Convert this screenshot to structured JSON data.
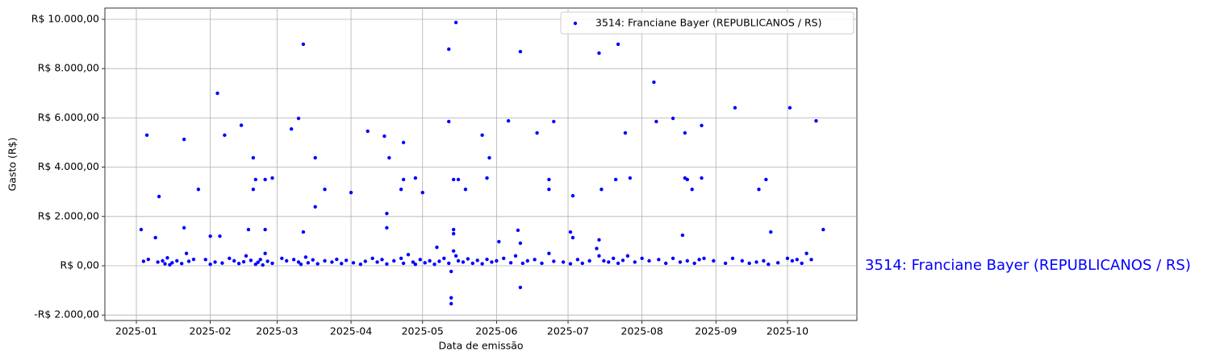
{
  "chart_data": {
    "type": "scatter",
    "xlabel": "Data de emissão",
    "ylabel": "Gasto (R$)",
    "annotation": "3514: Franciane Bayer (REPUBLICANOS / RS)",
    "legend": "upper right",
    "grid": true,
    "xlim": [
      -12.2,
      303.1
    ],
    "xticks": [
      {
        "value": 1,
        "label": "2025-01"
      },
      {
        "value": 32,
        "label": "2025-02"
      },
      {
        "value": 60,
        "label": "2025-03"
      },
      {
        "value": 91,
        "label": "2025-04"
      },
      {
        "value": 121,
        "label": "2025-05"
      },
      {
        "value": 152,
        "label": "2025-06"
      },
      {
        "value": 182,
        "label": "2025-07"
      },
      {
        "value": 213,
        "label": "2025-08"
      },
      {
        "value": 244,
        "label": "2025-09"
      },
      {
        "value": 274,
        "label": "2025-10"
      }
    ],
    "ylim": [
      -2222,
      10457
    ],
    "yticks": [
      {
        "value": -2000,
        "label": "-R$ 2.000,00"
      },
      {
        "value": 0,
        "label": "R$ 0,00"
      },
      {
        "value": 2000,
        "label": "R$ 2.000,00"
      },
      {
        "value": 4000,
        "label": "R$ 4.000,00"
      },
      {
        "value": 6000,
        "label": "R$ 6.000,00"
      },
      {
        "value": 8000,
        "label": "R$ 8.000,00"
      },
      {
        "value": 10000,
        "label": "R$ 10.000,00"
      }
    ],
    "x": [
      3,
      5.4,
      9,
      10.5,
      21,
      21,
      27,
      32,
      35,
      36,
      38,
      45,
      48,
      50,
      51,
      50,
      55,
      55,
      58,
      66,
      69,
      71,
      71,
      76,
      76,
      80,
      91,
      98,
      105,
      106,
      106,
      107,
      112,
      113,
      113,
      118,
      121,
      127,
      132,
      132,
      134,
      134,
      135,
      134,
      136,
      133,
      133,
      133,
      139,
      146,
      148,
      149,
      153,
      157,
      161,
      162,
      162,
      162,
      169,
      174,
      174,
      176,
      183,
      184,
      184,
      195,
      195,
      196,
      202,
      203,
      206,
      208,
      218,
      219,
      226,
      230,
      231,
      231,
      232,
      234,
      238,
      238,
      252,
      262,
      265,
      267,
      275,
      286,
      289,
      4,
      6,
      10,
      12,
      13,
      14,
      15,
      16,
      18,
      20,
      22,
      23,
      25,
      30,
      32,
      34,
      37,
      40,
      42,
      44,
      46,
      47,
      49,
      51,
      52,
      53,
      54,
      55,
      56,
      58,
      62,
      64,
      67,
      69,
      70,
      72,
      73,
      75,
      77,
      80,
      83,
      85,
      87,
      89,
      92,
      95,
      97,
      100,
      102,
      104,
      106,
      109,
      112,
      113,
      115,
      117,
      118,
      120,
      122,
      124,
      126,
      128,
      130,
      132,
      134,
      135,
      136,
      138,
      140,
      142,
      144,
      146,
      148,
      150,
      152,
      155,
      158,
      160,
      163,
      165,
      168,
      171,
      174,
      176,
      180,
      183,
      186,
      188,
      191,
      194,
      195,
      197,
      199,
      201,
      203,
      205,
      207,
      210,
      213,
      216,
      220,
      223,
      226,
      229,
      232,
      235,
      237,
      239,
      243,
      248,
      251,
      255,
      258,
      261,
      264,
      266,
      270,
      274,
      276,
      278,
      280,
      282,
      284
    ],
    "series": [
      {
        "name": "3514: Franciane Bayer (REPUBLICANOS / RS)",
        "color": "blue",
        "values": [
          1470,
          5300,
          1140,
          2810,
          5130,
          1540,
          3100,
          1200,
          7000,
          1200,
          5300,
          5700,
          1470,
          4380,
          3500,
          3100,
          3500,
          1470,
          3560,
          5550,
          5980,
          1370,
          8990,
          2390,
          4380,
          3100,
          2970,
          5460,
          5260,
          2120,
          1540,
          4380,
          3100,
          5000,
          3500,
          3560,
          2970,
          750,
          8790,
          5850,
          1470,
          1300,
          9870,
          3500,
          3500,
          -1300,
          -1540,
          -230,
          3100,
          5300,
          3560,
          4380,
          980,
          5880,
          1440,
          8690,
          915,
          -880,
          5390,
          3500,
          3100,
          5850,
          1370,
          2840,
          1140,
          8630,
          1050,
          3100,
          3500,
          8990,
          5390,
          3560,
          7450,
          5850,
          5980,
          1240,
          5390,
          3560,
          3500,
          3100,
          3560,
          5690,
          6410,
          3100,
          3500,
          1370,
          6410,
          5880,
          1470,
          180,
          260,
          150,
          200,
          80,
          320,
          40,
          120,
          200,
          90,
          500,
          180,
          260,
          250,
          60,
          150,
          110,
          300,
          200,
          90,
          160,
          400,
          220,
          60,
          140,
          250,
          30,
          500,
          180,
          100,
          300,
          200,
          250,
          150,
          60,
          350,
          120,
          240,
          80,
          200,
          150,
          260,
          90,
          220,
          120,
          60,
          180,
          300,
          150,
          250,
          70,
          200,
          300,
          100,
          450,
          150,
          60,
          250,
          120,
          200,
          60,
          180,
          300,
          100,
          600,
          400,
          200,
          150,
          280,
          100,
          220,
          80,
          260,
          150,
          200,
          300,
          120,
          400,
          100,
          200,
          250,
          100,
          500,
          180,
          150,
          80,
          250,
          100,
          200,
          700,
          400,
          200,
          150,
          300,
          100,
          220,
          400,
          150,
          300,
          200,
          250,
          100,
          300,
          150,
          200,
          100,
          250,
          300,
          200,
          100,
          300,
          200,
          100,
          150,
          200,
          60,
          120,
          300,
          200,
          250,
          100,
          500,
          250
        ]
      }
    ]
  }
}
